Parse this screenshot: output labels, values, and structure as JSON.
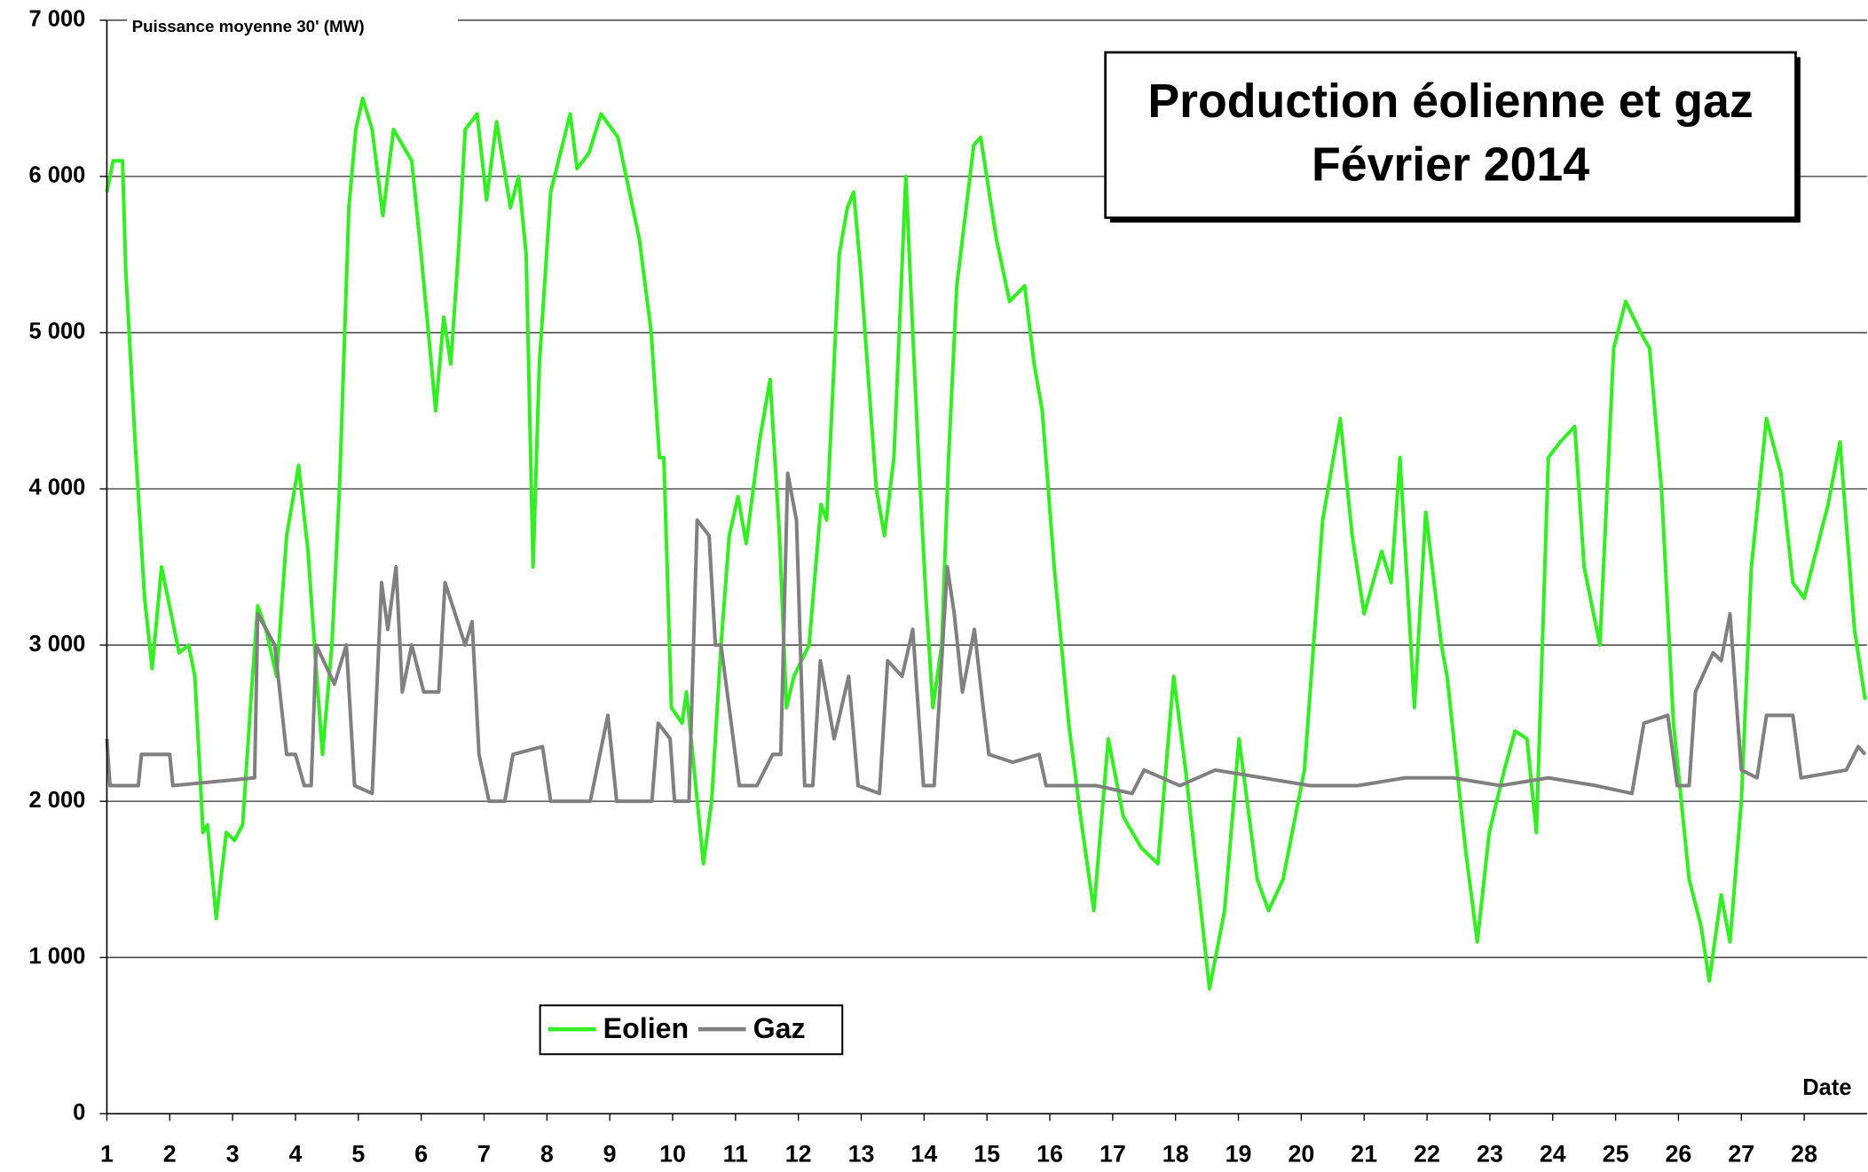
{
  "chart_data": {
    "type": "line",
    "title": "Production éolienne et gaz",
    "subtitle": "Février 2014",
    "ylabel": "Puissance moyenne 30' (MW)",
    "xlabel": "Date",
    "xlim": [
      1,
      29
    ],
    "xticks": [
      1,
      2,
      3,
      4,
      5,
      6,
      7,
      8,
      9,
      10,
      11,
      12,
      13,
      14,
      15,
      16,
      17,
      18,
      19,
      20,
      21,
      22,
      23,
      24,
      25,
      26,
      27,
      28
    ],
    "ylim": [
      0,
      7000
    ],
    "yticks": [
      {
        "value": 0,
        "label": "0"
      },
      {
        "value": 1000,
        "label": "1 000"
      },
      {
        "value": 2000,
        "label": "2 000"
      },
      {
        "value": 3000,
        "label": "3 000"
      },
      {
        "value": 4000,
        "label": "4 000"
      },
      {
        "value": 5000,
        "label": "5 000"
      },
      {
        "value": 6000,
        "label": "6 000"
      },
      {
        "value": 7000,
        "label": "7 000"
      }
    ],
    "grid": true,
    "series": [
      {
        "name": "Eolien",
        "color": "#33ee22",
        "x": [
          1,
          1.1,
          1.25,
          1.3,
          1.45,
          1.6,
          1.72,
          1.87,
          2.15,
          2.3,
          2.4,
          2.53,
          2.6,
          2.74,
          2.9,
          3.03,
          3.16,
          3.3,
          3.4,
          3.53,
          3.7,
          3.86,
          4.05,
          4.2,
          4.32,
          4.43,
          4.58,
          4.7,
          4.85,
          4.96,
          5.07,
          5.22,
          5.39,
          5.56,
          5.85,
          6.0,
          6.23,
          6.36,
          6.47,
          6.59,
          6.7,
          6.89,
          7.04,
          7.2,
          7.42,
          7.55,
          7.67,
          7.78,
          7.88,
          8.06,
          8.37,
          8.48,
          8.67,
          8.86,
          9.13,
          9.47,
          9.66,
          9.79,
          9.86,
          9.98,
          10.15,
          10.22,
          10.49,
          10.62,
          10.77,
          10.9,
          11.04,
          11.17,
          11.38,
          11.55,
          11.7,
          11.81,
          11.93,
          12.17,
          12.36,
          12.45,
          12.65,
          12.78,
          12.88,
          12.99,
          13.24,
          13.37,
          13.52,
          13.71,
          13.82,
          13.9,
          14.03,
          14.14,
          14.28,
          14.39,
          14.52,
          14.79,
          14.9,
          15.15,
          15.36,
          15.6,
          15.75,
          15.88,
          16.07,
          16.3,
          16.49,
          16.7,
          16.93,
          17.17,
          17.46,
          17.72,
          17.97,
          18.16,
          18.35,
          18.54,
          18.78,
          19.01,
          19.3,
          19.48,
          19.71,
          20.05,
          20.34,
          20.62,
          20.81,
          21.0,
          21.28,
          21.43,
          21.57,
          21.8,
          21.98,
          22.23,
          22.32,
          22.61,
          22.8,
          22.99,
          23.23,
          23.4,
          23.59,
          23.74,
          23.93,
          24.12,
          24.35,
          24.5,
          24.75,
          24.97,
          25.16,
          25.4,
          25.54,
          25.73,
          25.92,
          26.17,
          26.36,
          26.49,
          26.68,
          26.82,
          27.0,
          27.16,
          27.4,
          27.63,
          27.82,
          28.0,
          28.38,
          28.57,
          28.8,
          28.97
        ],
        "values": [
          5900,
          6100,
          6100,
          5400,
          4300,
          3300,
          2850,
          3500,
          2950,
          3000,
          2800,
          1800,
          1850,
          1250,
          1800,
          1750,
          1850,
          2700,
          3250,
          3100,
          2800,
          3700,
          4150,
          3600,
          2900,
          2300,
          3000,
          4000,
          5800,
          6300,
          6500,
          6300,
          5750,
          6300,
          6100,
          5500,
          4500,
          5100,
          4800,
          5500,
          6300,
          6400,
          5850,
          6350,
          5800,
          6000,
          5500,
          3500,
          4800,
          5900,
          6400,
          6050,
          6150,
          6400,
          6250,
          5600,
          5000,
          4200,
          4200,
          2600,
          2500,
          2700,
          1600,
          2000,
          3000,
          3700,
          3950,
          3650,
          4300,
          4700,
          3700,
          2600,
          2800,
          3000,
          3900,
          3800,
          5500,
          5800,
          5900,
          5400,
          4000,
          3700,
          4200,
          6000,
          5000,
          4300,
          3300,
          2600,
          3000,
          4200,
          5300,
          6200,
          6250,
          5600,
          5200,
          5300,
          4800,
          4500,
          3500,
          2500,
          1900,
          1300,
          2400,
          1900,
          1700,
          1600,
          2800,
          2200,
          1500,
          800,
          1300,
          2400,
          1500,
          1300,
          1500,
          2200,
          3800,
          4450,
          3700,
          3200,
          3600,
          3400,
          4200,
          2600,
          3850,
          3000,
          2800,
          1700,
          1100,
          1800,
          2200,
          2450,
          2400,
          1800,
          4200,
          4300,
          4400,
          3500,
          3000,
          4900,
          5200,
          5000,
          4900,
          4000,
          2500,
          1500,
          1200,
          850,
          1400,
          1100,
          2000,
          3500,
          4450,
          4100,
          3400,
          3300,
          3900,
          4300,
          3100,
          2650
        ]
      },
      {
        "name": "Gaz",
        "color": "#808080",
        "x": [
          1,
          1.05,
          1.5,
          1.55,
          2.0,
          2.05,
          3.35,
          3.4,
          3.67,
          3.86,
          4.0,
          4.14,
          4.25,
          4.33,
          4.62,
          4.81,
          4.94,
          5.22,
          5.37,
          5.47,
          5.6,
          5.7,
          5.85,
          6.04,
          6.28,
          6.38,
          6.7,
          6.81,
          6.92,
          7.08,
          7.33,
          7.46,
          7.93,
          8.06,
          8.69,
          8.97,
          9.11,
          9.67,
          9.77,
          9.96,
          10.03,
          10.26,
          10.39,
          10.58,
          10.68,
          10.77,
          11.06,
          11.34,
          11.59,
          11.72,
          11.83,
          11.97,
          12.1,
          12.23,
          12.35,
          12.57,
          12.8,
          12.95,
          13.29,
          13.42,
          13.65,
          13.82,
          13.99,
          14.16,
          14.37,
          14.48,
          14.61,
          14.8,
          14.94,
          15.03,
          15.41,
          15.83,
          15.94,
          16.74,
          17.31,
          17.5,
          18.07,
          18.63,
          19.39,
          20.14,
          20.9,
          21.65,
          22.41,
          23.17,
          23.93,
          24.69,
          25.26,
          25.45,
          25.83,
          25.98,
          26.17,
          26.27,
          26.55,
          26.68,
          26.82,
          27.0,
          27.25,
          27.4,
          27.82,
          27.95,
          28.67,
          28.86,
          28.97
        ],
        "values": [
          2400,
          2100,
          2100,
          2300,
          2300,
          2100,
          2150,
          3200,
          3000,
          2300,
          2300,
          2100,
          2100,
          3000,
          2750,
          3000,
          2100,
          2050,
          3400,
          3100,
          3500,
          2700,
          3000,
          2700,
          2700,
          3400,
          3000,
          3150,
          2300,
          2000,
          2000,
          2300,
          2350,
          2000,
          2000,
          2550,
          2000,
          2000,
          2500,
          2400,
          2000,
          2000,
          3800,
          3700,
          3000,
          3000,
          2100,
          2100,
          2300,
          2300,
          4100,
          3800,
          2100,
          2100,
          2900,
          2400,
          2800,
          2100,
          2050,
          2900,
          2800,
          3100,
          2100,
          2100,
          3500,
          3200,
          2700,
          3100,
          2600,
          2300,
          2250,
          2300,
          2100,
          2100,
          2050,
          2200,
          2100,
          2200,
          2150,
          2100,
          2100,
          2150,
          2150,
          2100,
          2150,
          2100,
          2050,
          2500,
          2550,
          2100,
          2100,
          2700,
          2950,
          2900,
          3200,
          2200,
          2150,
          2550,
          2550,
          2150,
          2200,
          2350,
          2300
        ]
      }
    ]
  }
}
